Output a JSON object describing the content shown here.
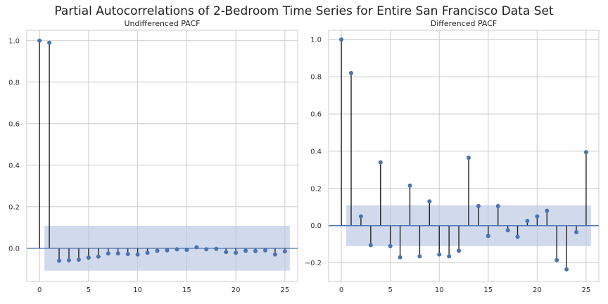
{
  "figure": {
    "suptitle": "Partial Autocorrelations of 2-Bedroom Time Series for Entire San Francisco Data Set"
  },
  "colors": {
    "marker": "#4c72b0",
    "stem": "#222222",
    "confidence_band": "#b8c6e3",
    "grid": "#cccccc",
    "frame": "#cccccc",
    "baseline": "#4c72b0"
  },
  "chart_data": [
    {
      "type": "scatter",
      "style": "stem",
      "title": "Undifferenced PACF",
      "xlabel": "",
      "ylabel": "",
      "xlim": [
        -1.3,
        26.3
      ],
      "ylim": [
        -0.16,
        1.05
      ],
      "xticks": [
        0,
        5,
        10,
        15,
        20,
        25
      ],
      "xtick_labels": [
        "0",
        "5",
        "10",
        "15",
        "20",
        "25"
      ],
      "yticks": [
        0.0,
        0.2,
        0.4,
        0.6,
        0.8,
        1.0
      ],
      "ytick_labels": [
        "0.0",
        "0.2",
        "0.4",
        "0.6",
        "0.8",
        "1.0"
      ],
      "grid": true,
      "confidence_interval": {
        "x_range": [
          0.5,
          25.5
        ],
        "lower": -0.108,
        "upper": 0.108
      },
      "x": [
        0,
        1,
        2,
        3,
        4,
        5,
        6,
        7,
        8,
        9,
        10,
        11,
        12,
        13,
        14,
        15,
        16,
        17,
        18,
        19,
        20,
        21,
        22,
        23,
        24,
        25
      ],
      "y": [
        1.0,
        0.99,
        -0.06,
        -0.058,
        -0.055,
        -0.045,
        -0.04,
        -0.025,
        -0.025,
        -0.028,
        -0.03,
        -0.022,
        -0.012,
        -0.01,
        -0.005,
        -0.008,
        0.005,
        -0.005,
        -0.003,
        -0.018,
        -0.022,
        -0.012,
        -0.013,
        -0.01,
        -0.03,
        -0.015
      ]
    },
    {
      "type": "scatter",
      "style": "stem",
      "title": "Differenced PACF",
      "xlabel": "",
      "ylabel": "",
      "xlim": [
        -1.3,
        26.3
      ],
      "ylim": [
        -0.3,
        1.05
      ],
      "xticks": [
        0,
        5,
        10,
        15,
        20,
        25
      ],
      "xtick_labels": [
        "0",
        "5",
        "10",
        "15",
        "20",
        "25"
      ],
      "yticks": [
        -0.2,
        0.0,
        0.2,
        0.4,
        0.6,
        0.8,
        1.0
      ],
      "ytick_labels": [
        "−0.2",
        "0.0",
        "0.2",
        "0.4",
        "0.6",
        "0.8",
        "1.0"
      ],
      "grid": true,
      "confidence_interval": {
        "x_range": [
          0.5,
          25.5
        ],
        "lower": -0.11,
        "upper": 0.11
      },
      "x": [
        0,
        1,
        2,
        3,
        4,
        5,
        6,
        7,
        8,
        9,
        10,
        11,
        12,
        13,
        14,
        15,
        16,
        17,
        18,
        19,
        20,
        21,
        22,
        23,
        24,
        25
      ],
      "y": [
        1.0,
        0.82,
        0.05,
        -0.105,
        0.34,
        -0.11,
        -0.17,
        0.215,
        -0.165,
        0.13,
        -0.155,
        -0.165,
        -0.135,
        0.365,
        0.105,
        -0.055,
        0.105,
        -0.025,
        -0.06,
        0.025,
        0.05,
        0.08,
        -0.185,
        -0.235,
        -0.035,
        0.395
      ]
    }
  ]
}
